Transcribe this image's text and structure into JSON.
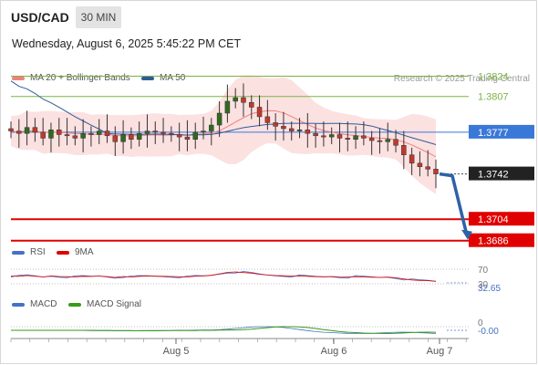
{
  "header": {
    "symbol": "USD/CAD",
    "timeframe": "30 MIN",
    "datetime": "Wednesday, August 6, 2025 5:45:22 PM CET"
  },
  "legend": {
    "ma20_label": "MA 20 + Bollinger Bands",
    "ma50_label": "MA 50",
    "ma20_color": "#f08080",
    "ma50_color": "#2e5c9a",
    "credit": "Research © 2025 Trading Central"
  },
  "rsi_legend": {
    "rsi_label": "RSI",
    "ma_label": "9MA",
    "rsi_color": "#4472c4",
    "ma_color": "#e00000"
  },
  "macd_legend": {
    "macd_label": "MACD",
    "signal_label": "MACD Signal",
    "macd_color": "#4472c4",
    "signal_color": "#3a9a1a"
  },
  "chart_data": {
    "type": "candlestick",
    "title": "USD/CAD",
    "x_ticks": [
      "Aug 5",
      "Aug 6",
      "Aug 7"
    ],
    "price_axis": {
      "ylim": [
        1.3672,
        1.3842
      ]
    },
    "levels": [
      {
        "value": 1.3824,
        "label": "1.3824",
        "kind": "resistance",
        "color": "#7cb342"
      },
      {
        "value": 1.3807,
        "label": "1.3807",
        "kind": "resistance",
        "color": "#7cb342"
      },
      {
        "value": 1.3777,
        "label": "1.3777",
        "kind": "pivot",
        "color": "#3a78d8"
      },
      {
        "value": 1.3742,
        "label": "1.3742",
        "kind": "last_price",
        "color": "#222222"
      },
      {
        "value": 1.3704,
        "label": "1.3704",
        "kind": "support",
        "color": "#e00000"
      },
      {
        "value": 1.3686,
        "label": "1.3686",
        "kind": "support",
        "color": "#e00000"
      }
    ],
    "close_series": [
      1.3778,
      1.3776,
      1.3781,
      1.3777,
      1.3772,
      1.3779,
      1.3775,
      1.3774,
      1.3772,
      1.3776,
      1.3775,
      1.3778,
      1.3774,
      1.3769,
      1.3775,
      1.3771,
      1.3776,
      1.3778,
      1.3777,
      1.3776,
      1.3775,
      1.3773,
      1.3771,
      1.3777,
      1.3778,
      1.3783,
      1.3793,
      1.3803,
      1.3806,
      1.3802,
      1.3798,
      1.379,
      1.3785,
      1.3782,
      1.378,
      1.3778,
      1.3779,
      1.3776,
      1.3774,
      1.3773,
      1.3775,
      1.3772,
      1.3771,
      1.3774,
      1.3772,
      1.377,
      1.3769,
      1.3771,
      1.3766,
      1.3758,
      1.3751,
      1.3748,
      1.3746,
      1.3742
    ],
    "forecast": {
      "from": 1.3742,
      "to": 1.3686
    },
    "rsi": {
      "label": "RSI",
      "ma_label": "9MA",
      "levels": [
        70,
        30
      ],
      "last_value": 32.65,
      "last_label": "32.65",
      "level_labels": [
        "70",
        "30"
      ]
    },
    "macd": {
      "zero_label": "0",
      "last_value": -0.0,
      "last_label": "-0.00"
    }
  }
}
